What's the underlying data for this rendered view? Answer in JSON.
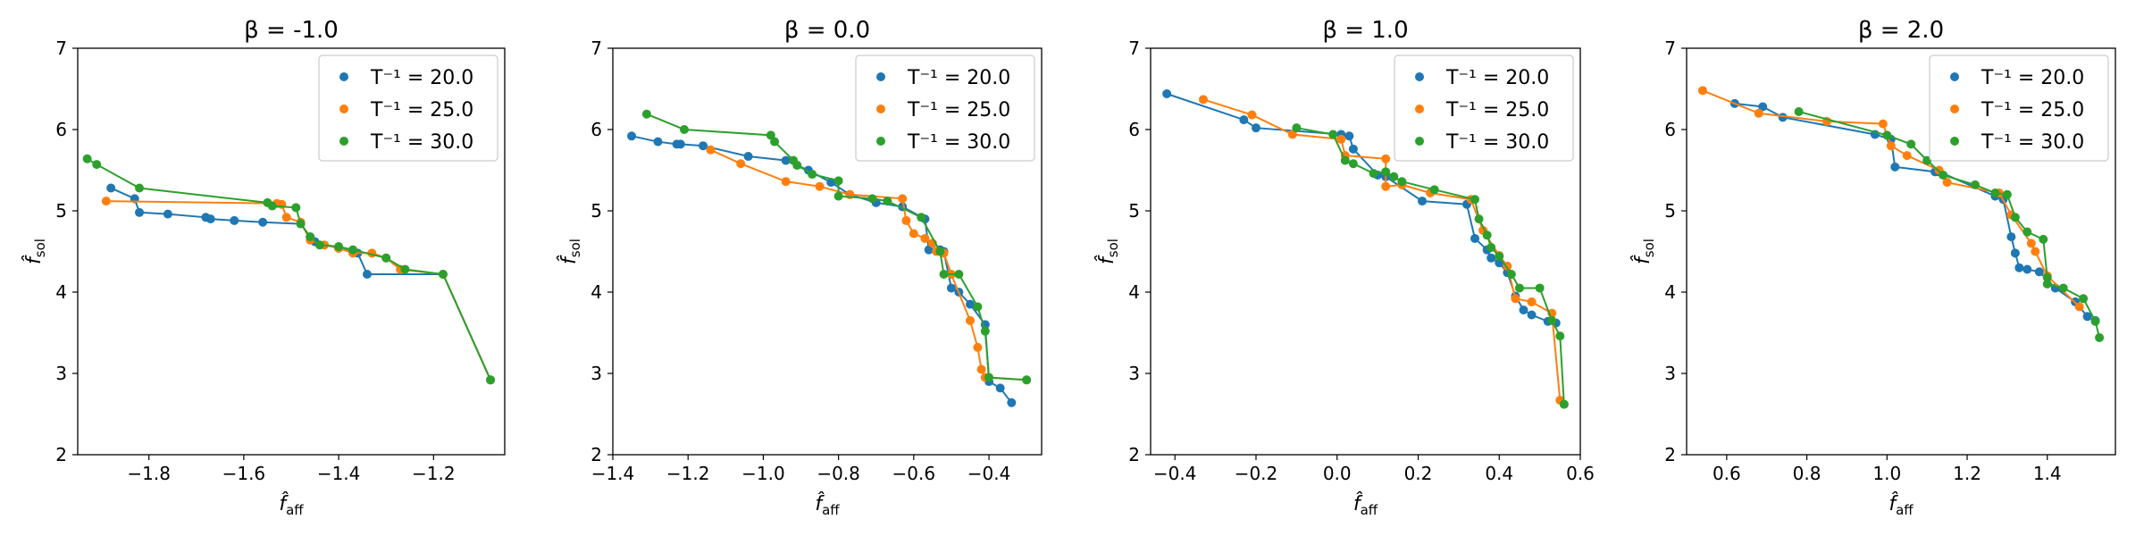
{
  "colors": {
    "series": [
      "#1f77b4",
      "#ff7f0e",
      "#2ca02c"
    ],
    "axis": "#000000",
    "legend_border": "#cccccc"
  },
  "chart_data": [
    {
      "type": "line",
      "title": "β = -1.0",
      "xlabel": "f̂aff",
      "ylabel": "f̂sol",
      "xlim": [
        -1.95,
        -1.05
      ],
      "ylim": [
        2,
        7
      ],
      "xticks": [
        -1.8,
        -1.6,
        -1.4,
        -1.2
      ],
      "xtick_labels": [
        "−1.8",
        "−1.6",
        "−1.4",
        "−1.2"
      ],
      "yticks": [
        2,
        3,
        4,
        5,
        6,
        7
      ],
      "ytick_labels": [
        "2",
        "3",
        "4",
        "5",
        "6",
        "7"
      ],
      "grid": false,
      "legend_position": "top-right",
      "series": [
        {
          "name": "T⁻¹ = 20.0",
          "x": [
            -1.88,
            -1.83,
            -1.82,
            -1.76,
            -1.68,
            -1.67,
            -1.62,
            -1.56,
            -1.48,
            -1.46,
            -1.45,
            -1.4,
            -1.36,
            -1.34,
            -1.18,
            -1.08
          ],
          "y": [
            5.28,
            5.15,
            4.98,
            4.96,
            4.92,
            4.9,
            4.88,
            4.86,
            4.84,
            4.68,
            4.62,
            4.54,
            4.48,
            4.22,
            4.22,
            2.92
          ]
        },
        {
          "name": "T⁻¹ = 25.0",
          "x": [
            -1.89,
            -1.53,
            -1.52,
            -1.51,
            -1.48,
            -1.46,
            -1.43,
            -1.4,
            -1.37,
            -1.33,
            -1.3,
            -1.27,
            -1.18,
            -1.08
          ],
          "y": [
            5.12,
            5.09,
            5.08,
            4.92,
            4.86,
            4.64,
            4.58,
            4.54,
            4.48,
            4.48,
            4.42,
            4.28,
            4.22,
            2.92
          ]
        },
        {
          "name": "T⁻¹ = 30.0",
          "x": [
            -1.93,
            -1.91,
            -1.82,
            -1.55,
            -1.54,
            -1.49,
            -1.48,
            -1.46,
            -1.44,
            -1.4,
            -1.37,
            -1.3,
            -1.26,
            -1.18,
            -1.08
          ],
          "y": [
            5.64,
            5.57,
            5.28,
            5.1,
            5.06,
            5.04,
            4.84,
            4.68,
            4.58,
            4.56,
            4.52,
            4.42,
            4.28,
            4.22,
            2.92
          ]
        }
      ]
    },
    {
      "type": "line",
      "title": "β = 0.0",
      "xlabel": "f̂aff",
      "ylabel": "f̂sol",
      "xlim": [
        -1.4,
        -0.26
      ],
      "ylim": [
        2,
        7
      ],
      "xticks": [
        -1.4,
        -1.2,
        -1.0,
        -0.8,
        -0.6,
        -0.4
      ],
      "xtick_labels": [
        "−1.4",
        "−1.2",
        "−1.0",
        "−0.8",
        "−0.6",
        "−0.4"
      ],
      "yticks": [
        2,
        3,
        4,
        5,
        6,
        7
      ],
      "ytick_labels": [
        "2",
        "3",
        "4",
        "5",
        "6",
        "7"
      ],
      "grid": false,
      "legend_position": "top-right",
      "series": [
        {
          "name": "T⁻¹ = 20.0",
          "x": [
            -1.35,
            -1.28,
            -1.23,
            -1.22,
            -1.16,
            -1.04,
            -0.94,
            -0.88,
            -0.82,
            -0.77,
            -0.7,
            -0.63,
            -0.57,
            -0.56,
            -0.53,
            -0.52,
            -0.5,
            -0.48,
            -0.45,
            -0.41,
            -0.4,
            -0.37,
            -0.34
          ],
          "y": [
            5.92,
            5.85,
            5.82,
            5.82,
            5.8,
            5.67,
            5.62,
            5.5,
            5.35,
            5.2,
            5.1,
            5.05,
            4.9,
            4.52,
            4.52,
            4.5,
            4.05,
            4.0,
            3.85,
            3.6,
            2.9,
            2.82,
            2.64
          ]
        },
        {
          "name": "T⁻¹ = 25.0",
          "x": [
            -1.14,
            -1.06,
            -0.94,
            -0.85,
            -0.77,
            -0.63,
            -0.62,
            -0.6,
            -0.57,
            -0.55,
            -0.54,
            -0.52,
            -0.5,
            -0.45,
            -0.43,
            -0.42,
            -0.41,
            -0.3
          ],
          "y": [
            5.75,
            5.58,
            5.36,
            5.3,
            5.2,
            5.15,
            4.88,
            4.72,
            4.66,
            4.6,
            4.5,
            4.48,
            4.22,
            3.65,
            3.32,
            3.05,
            2.95,
            2.92
          ]
        },
        {
          "name": "T⁻¹ = 30.0",
          "x": [
            -1.31,
            -1.21,
            -0.98,
            -0.97,
            -0.92,
            -0.91,
            -0.87,
            -0.8,
            -0.8,
            -0.71,
            -0.67,
            -0.58,
            -0.53,
            -0.52,
            -0.48,
            -0.43,
            -0.41,
            -0.4,
            -0.3
          ],
          "y": [
            6.19,
            6.0,
            5.93,
            5.85,
            5.62,
            5.56,
            5.45,
            5.37,
            5.18,
            5.15,
            5.12,
            4.92,
            4.5,
            4.22,
            4.22,
            3.82,
            3.52,
            2.95,
            2.92
          ]
        }
      ]
    },
    {
      "type": "line",
      "title": "β = 1.0",
      "xlabel": "f̂aff",
      "ylabel": "f̂sol",
      "xlim": [
        -0.46,
        0.6
      ],
      "ylim": [
        2,
        7
      ],
      "xticks": [
        -0.4,
        -0.2,
        0.0,
        0.2,
        0.4,
        0.6
      ],
      "xtick_labels": [
        "−0.4",
        "−0.2",
        "0.0",
        "0.2",
        "0.4",
        "0.6"
      ],
      "yticks": [
        2,
        3,
        4,
        5,
        6,
        7
      ],
      "ytick_labels": [
        "2",
        "3",
        "4",
        "5",
        "6",
        "7"
      ],
      "grid": false,
      "legend_position": "top-right",
      "series": [
        {
          "name": "T⁻¹ = 20.0",
          "x": [
            -0.42,
            -0.23,
            -0.2,
            0.01,
            0.03,
            0.04,
            0.1,
            0.12,
            0.21,
            0.32,
            0.34,
            0.37,
            0.38,
            0.4,
            0.42,
            0.44,
            0.46,
            0.48,
            0.52,
            0.54
          ],
          "y": [
            6.44,
            6.12,
            6.02,
            5.94,
            5.92,
            5.76,
            5.44,
            5.42,
            5.12,
            5.08,
            4.66,
            4.52,
            4.42,
            4.36,
            4.24,
            3.95,
            3.78,
            3.72,
            3.64,
            3.62
          ]
        },
        {
          "name": "T⁻¹ = 25.0",
          "x": [
            -0.33,
            -0.21,
            -0.11,
            0.01,
            0.02,
            0.12,
            0.12,
            0.16,
            0.23,
            0.33,
            0.36,
            0.4,
            0.42,
            0.44,
            0.48,
            0.53,
            0.55,
            0.56
          ],
          "y": [
            6.37,
            6.18,
            5.94,
            5.88,
            5.68,
            5.64,
            5.3,
            5.32,
            5.22,
            5.14,
            4.76,
            4.45,
            4.32,
            3.92,
            3.88,
            3.74,
            2.67,
            2.62
          ]
        },
        {
          "name": "T⁻¹ = 30.0",
          "x": [
            -0.1,
            -0.01,
            0.02,
            0.04,
            0.09,
            0.12,
            0.14,
            0.16,
            0.24,
            0.34,
            0.35,
            0.37,
            0.38,
            0.4,
            0.43,
            0.45,
            0.5,
            0.53,
            0.55,
            0.56
          ],
          "y": [
            6.02,
            5.94,
            5.62,
            5.58,
            5.46,
            5.48,
            5.42,
            5.36,
            5.26,
            5.14,
            4.9,
            4.7,
            4.55,
            4.44,
            4.22,
            4.05,
            4.05,
            3.65,
            3.46,
            2.62
          ]
        }
      ]
    },
    {
      "type": "line",
      "title": "β = 2.0",
      "xlabel": "f̂aff",
      "ylabel": "f̂sol",
      "xlim": [
        0.5,
        1.57
      ],
      "ylim": [
        2,
        7
      ],
      "xticks": [
        0.6,
        0.8,
        1.0,
        1.2,
        1.4
      ],
      "xtick_labels": [
        "0.6",
        "0.8",
        "1.0",
        "1.2",
        "1.4"
      ],
      "yticks": [
        2,
        3,
        4,
        5,
        6,
        7
      ],
      "ytick_labels": [
        "2",
        "3",
        "4",
        "5",
        "6",
        "7"
      ],
      "grid": false,
      "legend_position": "top-right",
      "series": [
        {
          "name": "T⁻¹ = 20.0",
          "x": [
            0.62,
            0.69,
            0.74,
            0.97,
            1.01,
            1.02,
            1.12,
            1.13,
            1.27,
            1.29,
            1.31,
            1.32,
            1.33,
            1.35,
            1.38,
            1.42,
            1.47,
            1.5,
            1.52
          ],
          "y": [
            6.32,
            6.28,
            6.15,
            5.94,
            5.88,
            5.54,
            5.48,
            5.48,
            5.18,
            5.14,
            4.68,
            4.48,
            4.3,
            4.28,
            4.25,
            4.05,
            3.88,
            3.7,
            3.65
          ]
        },
        {
          "name": "T⁻¹ = 25.0",
          "x": [
            0.54,
            0.68,
            0.85,
            0.99,
            1.01,
            1.05,
            1.13,
            1.15,
            1.28,
            1.31,
            1.36,
            1.37,
            1.4,
            1.48
          ],
          "y": [
            6.48,
            6.2,
            6.1,
            6.07,
            5.8,
            5.68,
            5.5,
            5.35,
            5.22,
            4.95,
            4.6,
            4.5,
            4.2,
            3.82
          ]
        },
        {
          "name": "T⁻¹ = 30.0",
          "x": [
            0.78,
            1.0,
            1.06,
            1.1,
            1.14,
            1.22,
            1.27,
            1.3,
            1.32,
            1.35,
            1.39,
            1.4,
            1.4,
            1.44,
            1.49,
            1.52,
            1.53
          ],
          "y": [
            6.22,
            5.93,
            5.82,
            5.62,
            5.44,
            5.32,
            5.22,
            5.2,
            4.92,
            4.74,
            4.65,
            4.18,
            4.1,
            4.05,
            3.92,
            3.64,
            3.44
          ]
        }
      ]
    }
  ]
}
